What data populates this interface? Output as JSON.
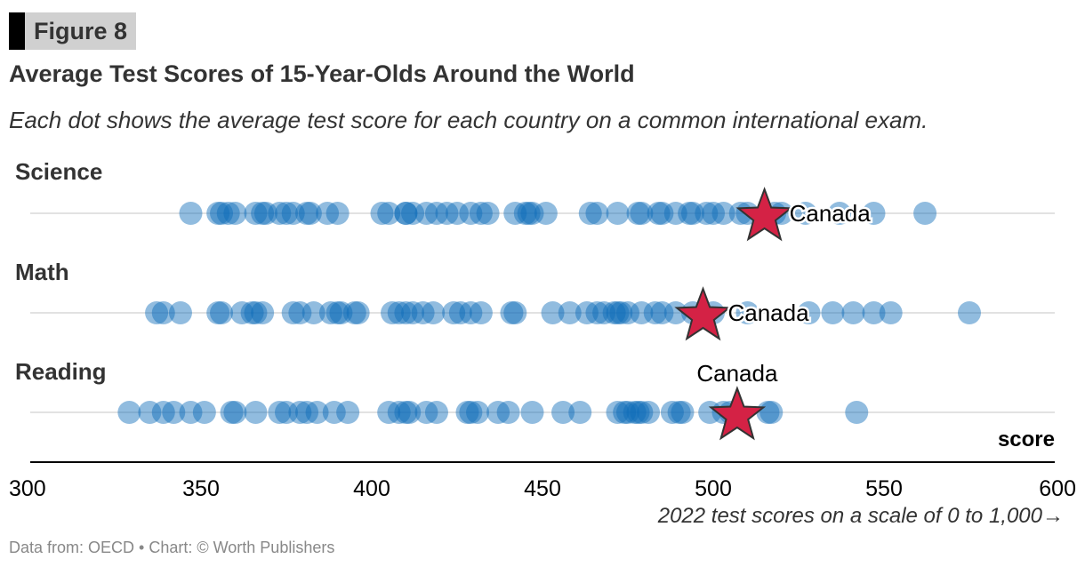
{
  "figure_label": "Figure 8",
  "source": "Data from: OECD • Chart: © Worth Publishers",
  "chart_data": {
    "type": "scatter",
    "title": "Average Test Scores of 15-Year-Olds Around the World",
    "subtitle": "Each dot shows the average test score for each country on a common international exam.",
    "xlabel": "score",
    "x_caption": "2022 test scores on a scale of 0 to 1,000→",
    "xlim": [
      300,
      600
    ],
    "xticks": [
      300,
      350,
      400,
      450,
      500,
      550,
      600
    ],
    "grid": false,
    "colors": {
      "dot": "#0a6bb8",
      "highlight": "#d42245"
    },
    "highlight_label": "Canada",
    "series": [
      {
        "name": "Science",
        "highlight": 515,
        "values": [
          347,
          355,
          356,
          358,
          360,
          366,
          368,
          369,
          373,
          375,
          377,
          381,
          382,
          387,
          390,
          403,
          405,
          410,
          410,
          412,
          416,
          419,
          422,
          425,
          429,
          432,
          434,
          442,
          445,
          446,
          447,
          451,
          464,
          466,
          472,
          478,
          479,
          484,
          485,
          489,
          493,
          494,
          498,
          500,
          503,
          508,
          510,
          518,
          520,
          527,
          537,
          547,
          562
        ]
      },
      {
        "name": "Math",
        "highlight": 497,
        "values": [
          337,
          339,
          344,
          355,
          356,
          362,
          365,
          366,
          368,
          377,
          379,
          383,
          388,
          390,
          391,
          395,
          396,
          406,
          408,
          410,
          412,
          415,
          418,
          424,
          426,
          429,
          432,
          441,
          442,
          453,
          458,
          463,
          466,
          468,
          471,
          472,
          473,
          475,
          479,
          483,
          485,
          489,
          494,
          500,
          510,
          528,
          535,
          541,
          547,
          552,
          575
        ]
      },
      {
        "name": "Reading",
        "highlight": 507,
        "values": [
          329,
          335,
          339,
          342,
          347,
          351,
          359,
          360,
          366,
          373,
          375,
          379,
          381,
          384,
          389,
          393,
          405,
          408,
          410,
          411,
          416,
          419,
          428,
          429,
          431,
          437,
          440,
          447,
          456,
          461,
          472,
          474,
          475,
          477,
          478,
          479,
          481,
          488,
          490,
          491,
          499,
          503,
          505,
          516,
          517,
          542
        ]
      }
    ]
  }
}
